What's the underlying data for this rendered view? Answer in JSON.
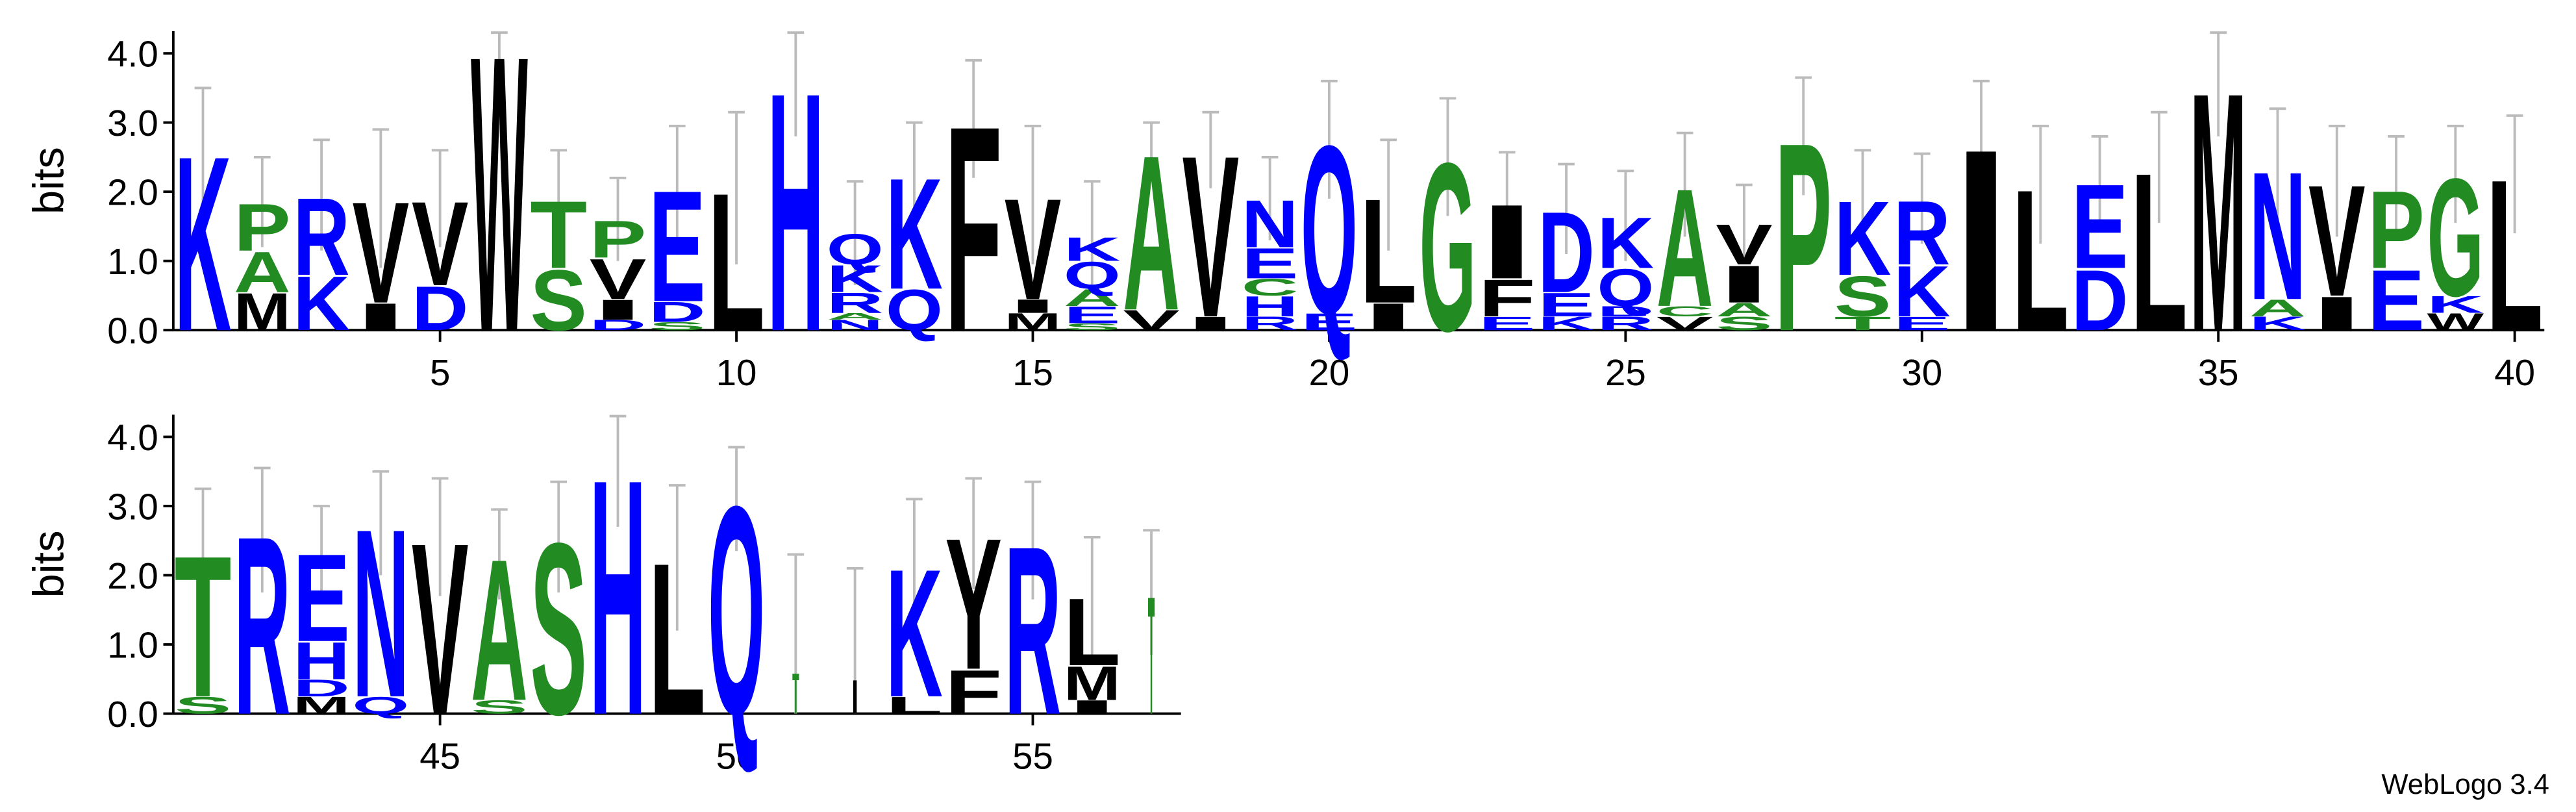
{
  "letter_colors": {
    "K": "#0000ff",
    "R": "#0000ff",
    "H": "#0000ff",
    "D": "#0000ff",
    "E": "#0000ff",
    "N": "#0000ff",
    "Q": "#0000ff",
    "G": "#228b22",
    "S": "#228b22",
    "T": "#228b22",
    "A": "#228b22",
    "P": "#228b22",
    "C": "#228b22",
    "V": "#000000",
    "L": "#000000",
    "I": "#000000",
    "M": "#000000",
    "F": "#000000",
    "W": "#000000",
    "Y": "#000000"
  },
  "credit": "WebLogo 3.4",
  "chart_data": [
    {
      "type": "logo",
      "ylabel": "bits",
      "ylim": [
        0,
        4.32
      ],
      "xlim": [
        0.5,
        40.5
      ],
      "yticks": [
        {
          "value": 0,
          "label": "0.0"
        },
        {
          "value": 1,
          "label": "1.0"
        },
        {
          "value": 2,
          "label": "2.0"
        },
        {
          "value": 3,
          "label": "3.0"
        },
        {
          "value": 4,
          "label": "4.0"
        }
      ],
      "xticks": [
        5,
        10,
        15,
        20,
        25,
        30,
        35,
        40
      ],
      "positions": [
        {
          "x": 1,
          "error": 0.9,
          "letters": [
            {
              "letter": "K",
              "value": 2.6
            }
          ]
        },
        {
          "x": 2,
          "error": 0.65,
          "letters": [
            {
              "letter": "M",
              "value": 0.55
            },
            {
              "letter": "A",
              "value": 0.6
            },
            {
              "letter": "P",
              "value": 0.7
            }
          ]
        },
        {
          "x": 3,
          "error": 0.8,
          "letters": [
            {
              "letter": "K",
              "value": 0.8
            },
            {
              "letter": "R",
              "value": 1.15
            }
          ]
        },
        {
          "x": 4,
          "error": 1.0,
          "letters": [
            {
              "letter": "I",
              "value": 0.4
            },
            {
              "letter": "V",
              "value": 1.5
            }
          ]
        },
        {
          "x": 5,
          "error": 0.7,
          "letters": [
            {
              "letter": "D",
              "value": 0.65
            },
            {
              "letter": "V",
              "value": 1.25
            }
          ]
        },
        {
          "x": 6,
          "error": 0.2,
          "letters": [
            {
              "letter": "W",
              "value": 4.1
            }
          ]
        },
        {
          "x": 7,
          "error": 0.7,
          "letters": [
            {
              "letter": "S",
              "value": 0.9
            },
            {
              "letter": "T",
              "value": 1.0
            }
          ]
        },
        {
          "x": 8,
          "error": 0.6,
          "letters": [
            {
              "letter": "D",
              "value": 0.15
            },
            {
              "letter": "I",
              "value": 0.3
            },
            {
              "letter": "V",
              "value": 0.6
            },
            {
              "letter": "P",
              "value": 0.55
            }
          ]
        },
        {
          "x": 9,
          "error": 0.88,
          "letters": [
            {
              "letter": "S",
              "value": 0.12
            },
            {
              "letter": "D",
              "value": 0.3
            },
            {
              "letter": "E",
              "value": 1.65
            }
          ]
        },
        {
          "x": 10,
          "error": 1.1,
          "letters": [
            {
              "letter": "L",
              "value": 2.05
            }
          ]
        },
        {
          "x": 11,
          "error": 0.75,
          "letters": [
            {
              "letter": "H",
              "value": 3.55
            }
          ]
        },
        {
          "x": 12,
          "error": 0.75,
          "letters": [
            {
              "letter": "N",
              "value": 0.15
            },
            {
              "letter": "A",
              "value": 0.1
            },
            {
              "letter": "R",
              "value": 0.3
            },
            {
              "letter": "K",
              "value": 0.4
            },
            {
              "letter": "Q",
              "value": 0.45
            }
          ]
        },
        {
          "x": 13,
          "error": 0.75,
          "letters": [
            {
              "letter": "Q",
              "value": 0.6
            },
            {
              "letter": "K",
              "value": 1.65
            }
          ]
        },
        {
          "x": 14,
          "error": 0.85,
          "letters": [
            {
              "letter": "F",
              "value": 3.05
            }
          ]
        },
        {
          "x": 15,
          "error": 1.0,
          "letters": [
            {
              "letter": "M",
              "value": 0.25
            },
            {
              "letter": "I",
              "value": 0.2
            },
            {
              "letter": "V",
              "value": 1.5
            }
          ]
        },
        {
          "x": 16,
          "error": 0.8,
          "letters": [
            {
              "letter": "S",
              "value": 0.1
            },
            {
              "letter": "E",
              "value": 0.25
            },
            {
              "letter": "A",
              "value": 0.25
            },
            {
              "letter": "Q",
              "value": 0.4
            },
            {
              "letter": "K",
              "value": 0.35
            }
          ]
        },
        {
          "x": 17,
          "error": 0.4,
          "letters": [
            {
              "letter": "V",
              "value": 0.3
            },
            {
              "letter": "A",
              "value": 2.3
            }
          ]
        },
        {
          "x": 18,
          "error": 0.55,
          "letters": [
            {
              "letter": "I",
              "value": 0.2
            },
            {
              "letter": "V",
              "value": 2.4
            }
          ]
        },
        {
          "x": 19,
          "error": 0.6,
          "letters": [
            {
              "letter": "R",
              "value": 0.2
            },
            {
              "letter": "H",
              "value": 0.3
            },
            {
              "letter": "C",
              "value": 0.25
            },
            {
              "letter": "E",
              "value": 0.45
            },
            {
              "letter": "N",
              "value": 0.7
            }
          ]
        },
        {
          "x": 20,
          "error": 0.85,
          "letters": [
            {
              "letter": "E",
              "value": 0.25
            },
            {
              "letter": "Q",
              "value": 2.5
            }
          ]
        },
        {
          "x": 21,
          "error": 0.8,
          "letters": [
            {
              "letter": "I",
              "value": 0.4
            },
            {
              "letter": "L",
              "value": 1.55
            }
          ]
        },
        {
          "x": 22,
          "error": 0.85,
          "letters": [
            {
              "letter": "G",
              "value": 2.5
            }
          ]
        },
        {
          "x": 23,
          "error": 0.72,
          "letters": [
            {
              "letter": "E",
              "value": 0.2
            },
            {
              "letter": "F",
              "value": 0.55
            },
            {
              "letter": "I",
              "value": 1.1
            }
          ]
        },
        {
          "x": 24,
          "error": 0.65,
          "letters": [
            {
              "letter": "K",
              "value": 0.2
            },
            {
              "letter": "E",
              "value": 0.35
            },
            {
              "letter": "D",
              "value": 1.2
            }
          ]
        },
        {
          "x": 25,
          "error": 0.65,
          "letters": [
            {
              "letter": "R",
              "value": 0.2
            },
            {
              "letter": "D",
              "value": 0.15
            },
            {
              "letter": "Q",
              "value": 0.55
            },
            {
              "letter": "K",
              "value": 0.75
            }
          ]
        },
        {
          "x": 26,
          "error": 0.75,
          "letters": [
            {
              "letter": "V",
              "value": 0.2
            },
            {
              "letter": "C",
              "value": 0.15
            },
            {
              "letter": "A",
              "value": 1.75
            }
          ]
        },
        {
          "x": 27,
          "error": 0.55,
          "letters": [
            {
              "letter": "S",
              "value": 0.2
            },
            {
              "letter": "A",
              "value": 0.2
            },
            {
              "letter": "I",
              "value": 0.55
            },
            {
              "letter": "V",
              "value": 0.6
            }
          ]
        },
        {
          "x": 28,
          "error": 0.85,
          "letters": [
            {
              "letter": "P",
              "value": 2.8
            }
          ]
        },
        {
          "x": 29,
          "error": 0.7,
          "letters": [
            {
              "letter": "T",
              "value": 0.2
            },
            {
              "letter": "S",
              "value": 0.6
            },
            {
              "letter": "K",
              "value": 1.1
            }
          ]
        },
        {
          "x": 30,
          "error": 0.65,
          "letters": [
            {
              "letter": "E",
              "value": 0.2
            },
            {
              "letter": "K",
              "value": 0.75
            },
            {
              "letter": "R",
              "value": 0.95
            }
          ]
        },
        {
          "x": 31,
          "error": 0.9,
          "letters": [
            {
              "letter": "I",
              "value": 2.7
            }
          ]
        },
        {
          "x": 32,
          "error": 0.85,
          "letters": [
            {
              "letter": "L",
              "value": 2.1
            }
          ]
        },
        {
          "x": 33,
          "error": 0.65,
          "letters": [
            {
              "letter": "D",
              "value": 0.9
            },
            {
              "letter": "E",
              "value": 1.25
            }
          ]
        },
        {
          "x": 34,
          "error": 0.8,
          "letters": [
            {
              "letter": "L",
              "value": 2.35
            }
          ]
        },
        {
          "x": 35,
          "error": 0.75,
          "letters": [
            {
              "letter": "M",
              "value": 3.55
            }
          ]
        },
        {
          "x": 36,
          "error": 0.85,
          "letters": [
            {
              "letter": "K",
              "value": 0.2
            },
            {
              "letter": "A",
              "value": 0.25
            },
            {
              "letter": "N",
              "value": 1.9
            }
          ]
        },
        {
          "x": 37,
          "error": 0.8,
          "letters": [
            {
              "letter": "I",
              "value": 0.5
            },
            {
              "letter": "V",
              "value": 1.65
            }
          ]
        },
        {
          "x": 38,
          "error": 0.75,
          "letters": [
            {
              "letter": "E",
              "value": 0.9
            },
            {
              "letter": "P",
              "value": 1.15
            }
          ]
        },
        {
          "x": 39,
          "error": 0.7,
          "letters": [
            {
              "letter": "W",
              "value": 0.25
            },
            {
              "letter": "K",
              "value": 0.25
            },
            {
              "letter": "G",
              "value": 1.75
            }
          ]
        },
        {
          "x": 40,
          "error": 0.85,
          "letters": [
            {
              "letter": "L",
              "value": 2.25
            }
          ]
        }
      ]
    },
    {
      "type": "logo",
      "ylabel": "bits",
      "ylim": [
        0,
        4.32
      ],
      "xlim": [
        40.5,
        57.5
      ],
      "yticks": [
        {
          "value": 0,
          "label": "0.0"
        },
        {
          "value": 1,
          "label": "1.0"
        },
        {
          "value": 2,
          "label": "2.0"
        },
        {
          "value": 3,
          "label": "3.0"
        },
        {
          "value": 4,
          "label": "4.0"
        }
      ],
      "xticks": [
        45,
        50,
        55
      ],
      "positions": [
        {
          "x": 41,
          "error": 0.9,
          "letters": [
            {
              "letter": "S",
              "value": 0.25
            },
            {
              "letter": "T",
              "value": 2.1
            }
          ]
        },
        {
          "x": 42,
          "error": 0.9,
          "letters": [
            {
              "letter": "R",
              "value": 2.65
            }
          ]
        },
        {
          "x": 43,
          "error": 0.65,
          "letters": [
            {
              "letter": "M",
              "value": 0.25
            },
            {
              "letter": "D",
              "value": 0.25
            },
            {
              "letter": "H",
              "value": 0.55
            },
            {
              "letter": "E",
              "value": 1.3
            }
          ]
        },
        {
          "x": 44,
          "error": 0.75,
          "letters": [
            {
              "letter": "Q",
              "value": 0.25
            },
            {
              "letter": "N",
              "value": 2.5
            }
          ]
        },
        {
          "x": 45,
          "error": 0.85,
          "letters": [
            {
              "letter": "V",
              "value": 2.55
            }
          ]
        },
        {
          "x": 46,
          "error": 0.65,
          "letters": [
            {
              "letter": "S",
              "value": 0.2
            },
            {
              "letter": "A",
              "value": 2.1
            }
          ]
        },
        {
          "x": 47,
          "error": 0.8,
          "letters": [
            {
              "letter": "S",
              "value": 2.55
            }
          ]
        },
        {
          "x": 48,
          "error": 0.8,
          "letters": [
            {
              "letter": "H",
              "value": 3.5
            }
          ]
        },
        {
          "x": 49,
          "error": 1.05,
          "letters": [
            {
              "letter": "L",
              "value": 2.25
            }
          ]
        },
        {
          "x": 50,
          "error": 0.75,
          "letters": [
            {
              "letter": "Q",
              "value": 3.1
            }
          ]
        },
        {
          "x": 51,
          "error": 1.7,
          "weight": 0.12,
          "letters": [
            {
              "letter": "T",
              "value": 0.6
            }
          ]
        },
        {
          "x": 52,
          "error": 1.6,
          "weight": 0.12,
          "letters": [
            {
              "letter": "I",
              "value": 0.5
            }
          ]
        },
        {
          "x": 53,
          "error": 0.95,
          "letters": [
            {
              "letter": "L",
              "value": 0.25
            },
            {
              "letter": "K",
              "value": 1.9
            }
          ]
        },
        {
          "x": 54,
          "error": 0.8,
          "letters": [
            {
              "letter": "F",
              "value": 0.65
            },
            {
              "letter": "Y",
              "value": 1.95
            }
          ]
        },
        {
          "x": 55,
          "error": 0.85,
          "letters": [
            {
              "letter": "R",
              "value": 2.5
            }
          ]
        },
        {
          "x": 56,
          "error": 0.85,
          "letters": [
            {
              "letter": "I",
              "value": 0.2
            },
            {
              "letter": "M",
              "value": 0.5
            },
            {
              "letter": "L",
              "value": 1.0
            }
          ]
        },
        {
          "x": 57,
          "error": 0.9,
          "weight": 0.12,
          "letters": [
            {
              "letter": "T",
              "value": 1.75
            }
          ]
        }
      ]
    }
  ]
}
